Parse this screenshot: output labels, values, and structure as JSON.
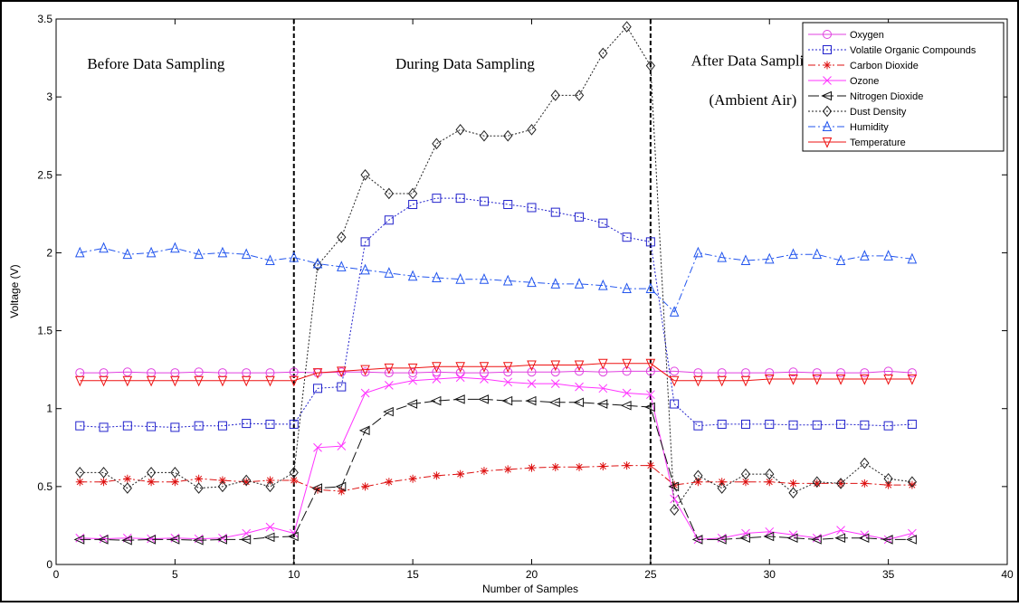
{
  "chart_data": {
    "type": "line",
    "title": "",
    "xlabel": "Number of Samples",
    "ylabel": "Voltage (V)",
    "xlim": [
      0,
      40
    ],
    "ylim": [
      0,
      3.5
    ],
    "xticks": [
      0,
      5,
      10,
      15,
      20,
      25,
      30,
      35,
      40
    ],
    "yticks": [
      0,
      0.5,
      1,
      1.5,
      2,
      2.5,
      3,
      3.5
    ],
    "x": [
      1,
      2,
      3,
      4,
      5,
      6,
      7,
      8,
      9,
      10,
      11,
      12,
      13,
      14,
      15,
      16,
      17,
      18,
      19,
      20,
      21,
      22,
      23,
      24,
      25,
      26,
      27,
      28,
      29,
      30,
      31,
      32,
      33,
      34,
      35,
      36
    ],
    "grid": false,
    "legend_position": "top-right",
    "phase_boundaries": [
      10,
      25
    ],
    "annotations": [
      {
        "text": "Before Data Sampling",
        "x": 4.2,
        "y": 3.18
      },
      {
        "text": "During Data Sampling",
        "x": 17.2,
        "y": 3.18
      },
      {
        "text": "After Data Sampling",
        "x": 29.4,
        "y": 3.2
      },
      {
        "text": "(Ambient Air)",
        "x": 29.3,
        "y": 2.95
      }
    ],
    "series": [
      {
        "name": "Oxygen",
        "color": "#e040e0",
        "dash": "solid",
        "marker": "circle",
        "values": [
          1.23,
          1.23,
          1.235,
          1.23,
          1.23,
          1.235,
          1.23,
          1.23,
          1.23,
          1.235,
          1.23,
          1.235,
          1.235,
          1.23,
          1.23,
          1.235,
          1.23,
          1.23,
          1.235,
          1.235,
          1.235,
          1.24,
          1.235,
          1.24,
          1.24,
          1.24,
          1.23,
          1.23,
          1.23,
          1.23,
          1.235,
          1.23,
          1.23,
          1.23,
          1.24,
          1.23
        ]
      },
      {
        "name": "Volatile Organic Compounds",
        "color": "#2222cc",
        "dash": "dotted",
        "marker": "square",
        "values": [
          0.89,
          0.88,
          0.89,
          0.885,
          0.88,
          0.89,
          0.89,
          0.905,
          0.9,
          0.9,
          1.13,
          1.14,
          2.07,
          2.21,
          2.31,
          2.35,
          2.35,
          2.33,
          2.31,
          2.29,
          2.26,
          2.23,
          2.19,
          2.1,
          2.07,
          1.03,
          0.89,
          0.9,
          0.9,
          0.9,
          0.895,
          0.895,
          0.9,
          0.895,
          0.89,
          0.9
        ]
      },
      {
        "name": "Carbon Dioxide",
        "color": "#dd1111",
        "dash": "dashdot",
        "marker": "star",
        "values": [
          0.53,
          0.53,
          0.55,
          0.53,
          0.53,
          0.55,
          0.54,
          0.53,
          0.54,
          0.54,
          0.48,
          0.47,
          0.5,
          0.53,
          0.55,
          0.57,
          0.58,
          0.6,
          0.61,
          0.62,
          0.625,
          0.625,
          0.63,
          0.635,
          0.635,
          0.51,
          0.53,
          0.53,
          0.53,
          0.53,
          0.52,
          0.52,
          0.52,
          0.52,
          0.51,
          0.51
        ]
      },
      {
        "name": "Ozone",
        "color": "#ff33ff",
        "dash": "solid",
        "marker": "x",
        "values": [
          0.17,
          0.165,
          0.17,
          0.165,
          0.17,
          0.165,
          0.17,
          0.2,
          0.24,
          0.2,
          0.75,
          0.76,
          1.1,
          1.15,
          1.18,
          1.19,
          1.2,
          1.19,
          1.17,
          1.16,
          1.16,
          1.14,
          1.13,
          1.1,
          1.09,
          0.42,
          0.16,
          0.17,
          0.2,
          0.21,
          0.19,
          0.17,
          0.22,
          0.19,
          0.16,
          0.2
        ]
      },
      {
        "name": "Nitrogen Dioxide",
        "color": "#111111",
        "dash": "longdash",
        "marker": "triangle-left",
        "values": [
          0.16,
          0.16,
          0.155,
          0.16,
          0.16,
          0.155,
          0.16,
          0.16,
          0.175,
          0.18,
          0.49,
          0.5,
          0.86,
          0.98,
          1.03,
          1.05,
          1.06,
          1.06,
          1.05,
          1.05,
          1.04,
          1.04,
          1.03,
          1.02,
          1.01,
          0.5,
          0.16,
          0.16,
          0.17,
          0.18,
          0.17,
          0.16,
          0.17,
          0.17,
          0.16,
          0.16
        ]
      },
      {
        "name": "Dust Density",
        "color": "#222222",
        "dash": "dotted",
        "marker": "diamond",
        "values": [
          0.59,
          0.59,
          0.49,
          0.59,
          0.59,
          0.49,
          0.5,
          0.54,
          0.5,
          0.59,
          1.92,
          2.1,
          2.5,
          2.38,
          2.38,
          2.7,
          2.79,
          2.75,
          2.75,
          2.79,
          3.01,
          3.01,
          3.28,
          3.45,
          3.2,
          0.35,
          0.57,
          0.49,
          0.58,
          0.58,
          0.46,
          0.53,
          0.52,
          0.65,
          0.55,
          0.53
        ]
      },
      {
        "name": "Humidity",
        "color": "#2255ee",
        "dash": "dashdot",
        "marker": "triangle-up",
        "values": [
          2.0,
          2.03,
          1.99,
          2.0,
          2.03,
          1.99,
          2.0,
          1.99,
          1.95,
          1.97,
          1.93,
          1.91,
          1.89,
          1.87,
          1.85,
          1.84,
          1.83,
          1.83,
          1.82,
          1.81,
          1.8,
          1.8,
          1.79,
          1.77,
          1.77,
          1.62,
          2.0,
          1.97,
          1.95,
          1.96,
          1.99,
          1.99,
          1.95,
          1.98,
          1.98,
          1.96
        ]
      },
      {
        "name": "Temperature",
        "color": "#ee1111",
        "dash": "solid",
        "marker": "triangle-down",
        "values": [
          1.18,
          1.18,
          1.18,
          1.18,
          1.18,
          1.18,
          1.18,
          1.18,
          1.18,
          1.18,
          1.23,
          1.24,
          1.25,
          1.26,
          1.26,
          1.27,
          1.27,
          1.27,
          1.27,
          1.28,
          1.28,
          1.28,
          1.29,
          1.29,
          1.29,
          1.18,
          1.18,
          1.18,
          1.18,
          1.19,
          1.19,
          1.19,
          1.19,
          1.19,
          1.19,
          1.19
        ]
      }
    ]
  }
}
